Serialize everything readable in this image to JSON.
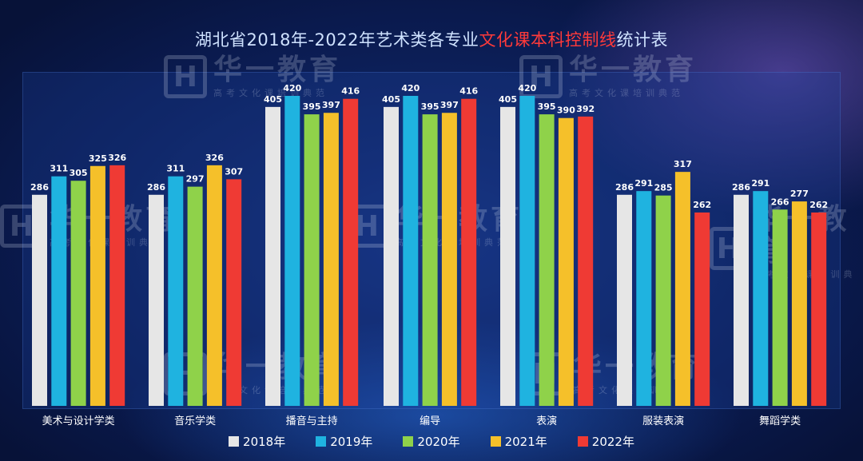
{
  "title": {
    "part1": "湖北省2018年-2022年艺术类各专业",
    "part2": "文化课本科控制线",
    "part3": "统计表"
  },
  "watermark": {
    "logo": "H",
    "name": "华一教育",
    "sub": "高考文化课培训典范"
  },
  "colors": {
    "2018年": "#e6e6e6",
    "2019年": "#1fb3e0",
    "2020年": "#8fd24a",
    "2021年": "#f5c02a",
    "2022年": "#ef3a34"
  },
  "chart_data": {
    "type": "bar",
    "categories": [
      "美术与设计学类",
      "音乐学类",
      "播音与主持",
      "编导",
      "表演",
      "服装表演",
      "舞蹈学类"
    ],
    "series": [
      {
        "name": "2018年",
        "values": [
          286,
          286,
          405,
          405,
          405,
          286,
          286
        ]
      },
      {
        "name": "2019年",
        "values": [
          311,
          311,
          420,
          420,
          420,
          291,
          291
        ]
      },
      {
        "name": "2020年",
        "values": [
          305,
          297,
          395,
          395,
          395,
          285,
          266
        ]
      },
      {
        "name": "2021年",
        "values": [
          325,
          326,
          397,
          397,
          390,
          317,
          277
        ]
      },
      {
        "name": "2022年",
        "values": [
          326,
          307,
          416,
          416,
          392,
          262,
          262
        ]
      }
    ],
    "ylim": [
      0,
      430
    ],
    "grid": false,
    "legend": "bottom"
  }
}
